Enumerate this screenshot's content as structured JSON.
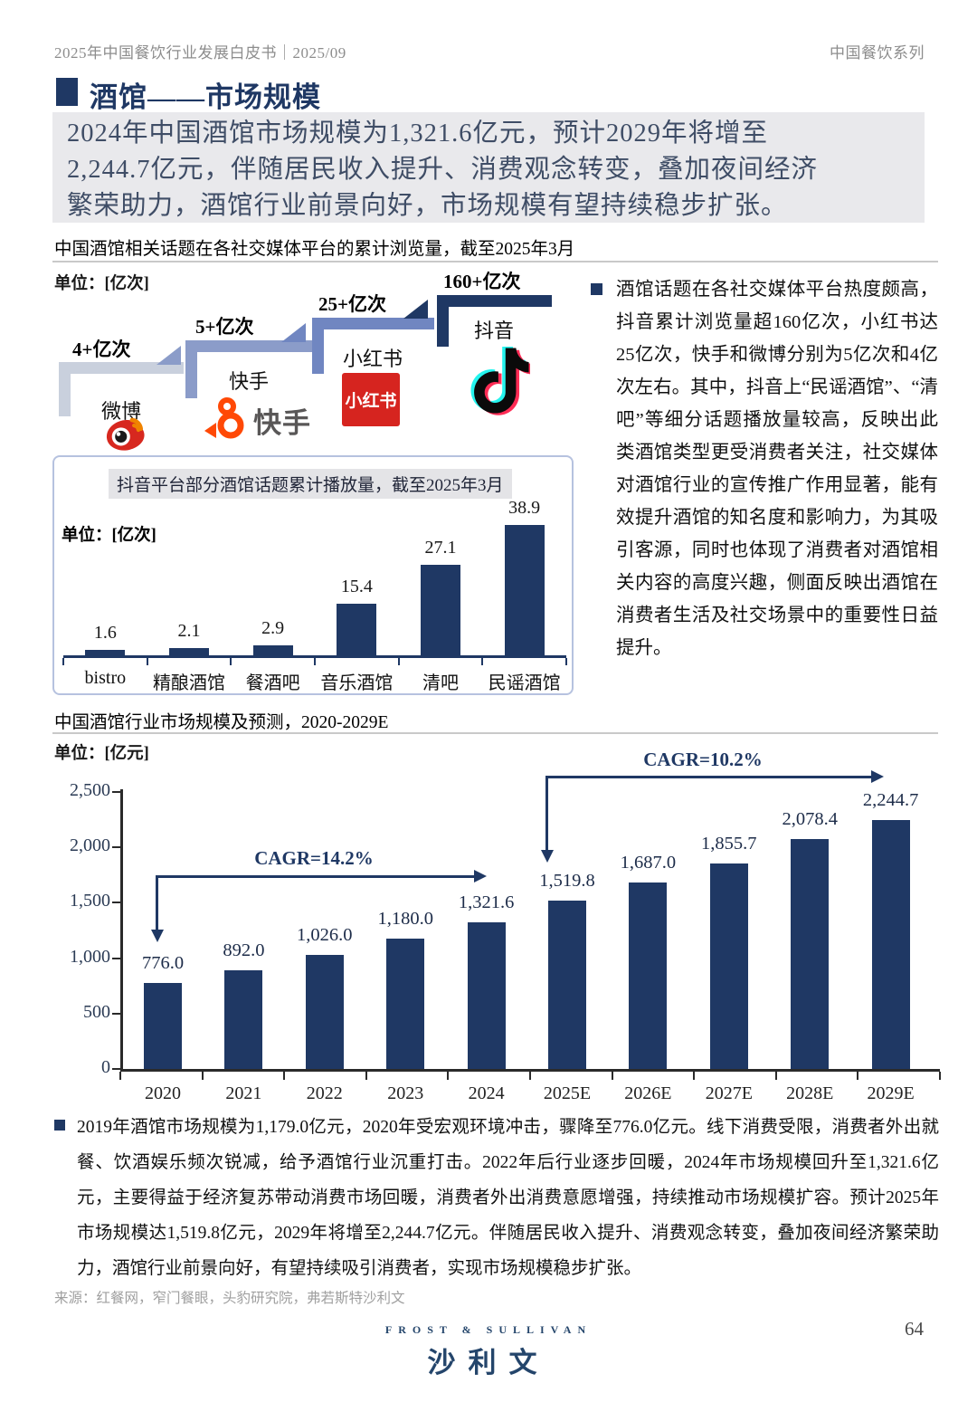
{
  "header": {
    "left": "2025年中国餐饮行业发展白皮书｜2025/09",
    "right": "中国餐饮系列"
  },
  "title": "酒馆——市场规模",
  "highlight": "2024年中国酒馆市场规模为1,321.6亿元，预计2029年将增至\n2,244.7亿元，伴随居民收入提升、消费观念转变，叠加夜间经济\n繁荣助力，酒馆行业前景向好，市场规模有望持续稳步扩张。",
  "media_section": {
    "caption": "中国酒馆相关话题在各社交媒体平台的累计浏览量，截至2025年3月",
    "unit": "单位：[亿次]",
    "platforms": [
      {
        "name": "微博",
        "views": "4+亿次",
        "icon": "weibo-icon",
        "color": "#c9d0dd"
      },
      {
        "name": "快手",
        "views": "5+亿次",
        "icon": "kuaishou-icon",
        "color": "#8b9cc9"
      },
      {
        "name": "小红书",
        "views": "25+亿次",
        "icon": "xiaohongshu-icon",
        "color": "#7086c1"
      },
      {
        "name": "抖音",
        "views": "160+亿次",
        "icon": "douyin-icon",
        "color": "#1f3864"
      }
    ],
    "xiaohongshu_logo_text": "小红书",
    "kuaishou_logo_text": "快手"
  },
  "chart_data": [
    {
      "type": "bar",
      "title": "抖音平台部分酒馆话题累计播放量，截至2025年3月",
      "unit": "单位：[亿次]",
      "categories": [
        "bistro",
        "精酿酒馆",
        "餐酒吧",
        "音乐酒馆",
        "清吧",
        "民谣酒馆"
      ],
      "values": [
        1.6,
        2.1,
        2.9,
        15.4,
        27.1,
        38.9
      ],
      "value_labels": [
        "1.6",
        "2.1",
        "2.9",
        "15.4",
        "27.1",
        "38.9"
      ],
      "bar_color": "#1f3864",
      "ylim": [
        0,
        40
      ],
      "grid": false,
      "legend": "none"
    },
    {
      "type": "bar",
      "title": "中国酒馆行业市场规模及预测，2020-2029E",
      "unit": "单位：[亿元]",
      "categories": [
        "2020",
        "2021",
        "2022",
        "2023",
        "2024",
        "2025E",
        "2026E",
        "2027E",
        "2028E",
        "2029E"
      ],
      "values": [
        776.0,
        892.0,
        1026.0,
        1180.0,
        1321.6,
        1519.8,
        1687.0,
        1855.7,
        2078.4,
        2244.7
      ],
      "value_labels": [
        "776.0",
        "892.0",
        "1,026.0",
        "1,180.0",
        "1,321.6",
        "1,519.8",
        "1,687.0",
        "1,855.7",
        "2,078.4",
        "2,244.7"
      ],
      "y_ticks": [
        {
          "value": 2500,
          "label": "2,500"
        },
        {
          "value": 2000,
          "label": "2,000"
        },
        {
          "value": 1500,
          "label": "1,500"
        },
        {
          "value": 1000,
          "label": "1,000"
        },
        {
          "value": 500,
          "label": "500"
        },
        {
          "value": 0,
          "label": "0"
        }
      ],
      "ylim": [
        0,
        2500
      ],
      "grid": false,
      "legend": "none",
      "annotations": [
        {
          "label": "CAGR=14.2%"
        },
        {
          "label": "CAGR=10.2%"
        }
      ],
      "bar_color": "#1f3864"
    }
  ],
  "commentary": {
    "media_note": "酒馆话题在各社交媒体平台热度颇高，抖音累计浏览量超160亿次，小红书达25亿次，快手和微博分别为5亿次和4亿次左右。其中，抖音上“民谣酒馆”、“清吧”等细分话题播放量较高，反映出此类酒馆类型更受消费者关注，社交媒体对酒馆行业的宣传推广作用显著，能有效提升酒馆的知名度和影响力，为其吸引客源，同时也体现了消费者对酒馆相关内容的高度兴趣，侧面反映出酒馆在消费者生活及社交场景中的重要性日益提升。",
    "market_note": "2019年酒馆市场规模为1,179.0亿元，2020年受宏观环境冲击，骤降至776.0亿元。线下消费受限，消费者外出就餐、饮酒娱乐频次锐减，给予酒馆行业沉重打击。2022年后行业逐步回暖，2024年市场规模回升至1,321.6亿元，主要得益于经济复苏带动消费市场回暖，消费者外出消费意愿增强，持续推动市场规模扩容。预计2025年市场规模达1,519.8亿元，2029年将增至2,244.7亿元。伴随居民收入提升、消费观念转变，叠加夜间经济繁荣助力，酒馆行业前景向好，有望持续吸引消费者，实现市场规模稳步扩张。"
  },
  "footer": {
    "source": "来源：红餐网，窄门餐眼，头豹研究院，弗若斯特沙利文",
    "logo_line1": "FROST & SULLIVAN",
    "logo_line2": "沙利文",
    "page_number": "64"
  }
}
